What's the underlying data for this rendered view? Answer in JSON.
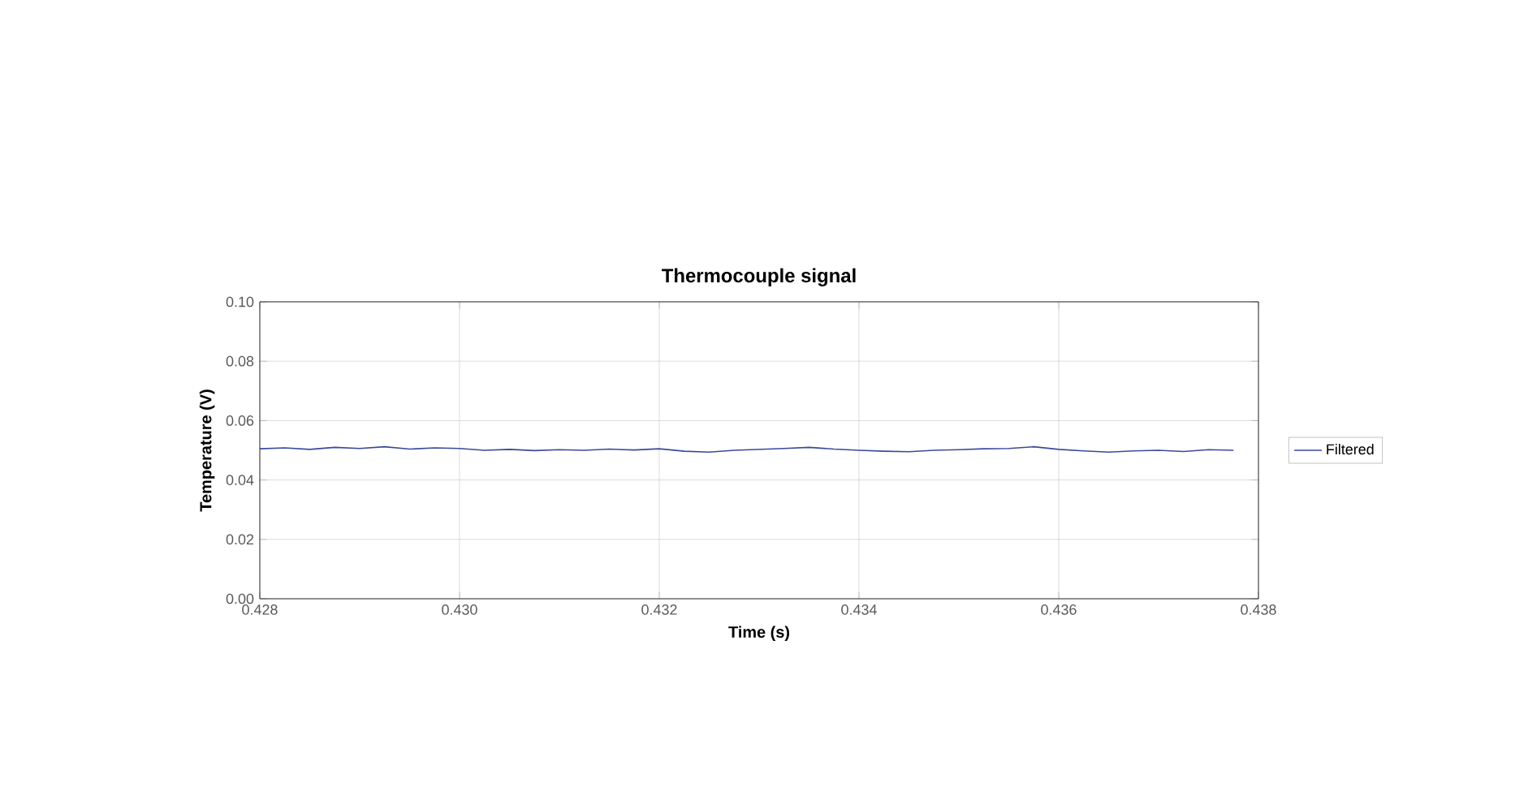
{
  "chart_data": {
    "type": "line",
    "title": "Thermocouple signal",
    "xlabel": "Time (s)",
    "ylabel": "Temperature (V)",
    "x": [
      0.428,
      0.42825,
      0.4285,
      0.42875,
      0.429,
      0.42925,
      0.4295,
      0.42975,
      0.43,
      0.43025,
      0.4305,
      0.43075,
      0.431,
      0.43125,
      0.4315,
      0.43175,
      0.432,
      0.43225,
      0.4325,
      0.43275,
      0.433,
      0.43325,
      0.4335,
      0.43375,
      0.434,
      0.43425,
      0.4345,
      0.43475,
      0.435,
      0.43525,
      0.4355,
      0.43575,
      0.436,
      0.43625,
      0.4365,
      0.43675,
      0.437,
      0.43725,
      0.4375,
      0.43775
    ],
    "series": [
      {
        "name": "Filtered",
        "color": "#3b4a9a",
        "values": [
          0.0505,
          0.0508,
          0.0503,
          0.051,
          0.0506,
          0.0512,
          0.0504,
          0.0508,
          0.0506,
          0.05,
          0.0503,
          0.0499,
          0.0502,
          0.05,
          0.0504,
          0.0501,
          0.0505,
          0.0497,
          0.0494,
          0.05,
          0.0503,
          0.0506,
          0.051,
          0.0504,
          0.05,
          0.0497,
          0.0495,
          0.05,
          0.0502,
          0.0505,
          0.0506,
          0.0512,
          0.0503,
          0.0498,
          0.0494,
          0.0498,
          0.05,
          0.0496,
          0.0502,
          0.05
        ]
      }
    ],
    "xlim": [
      0.428,
      0.438
    ],
    "ylim": [
      0,
      0.1
    ],
    "xticks": [
      0.428,
      {
        "value": 0.43,
        "label": "0.430"
      },
      0.432,
      0.434,
      0.436,
      0.438
    ],
    "yticks": [
      {
        "value": 0,
        "label": "0.00"
      },
      {
        "value": 0.02,
        "label": "0.02"
      },
      {
        "value": 0.04,
        "label": "0.04"
      },
      {
        "value": 0.06,
        "label": "0.06"
      },
      {
        "value": 0.08,
        "label": "0.08"
      },
      {
        "value": 0.1,
        "label": "0.10"
      }
    ],
    "grid": true,
    "legend": "right"
  }
}
